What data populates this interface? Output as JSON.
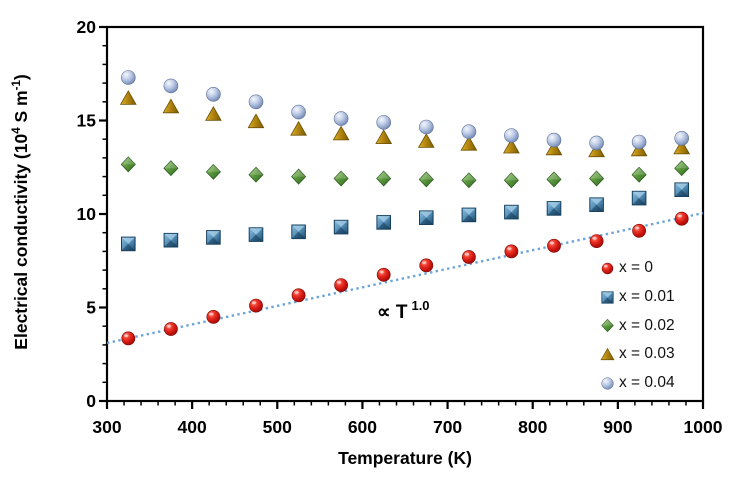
{
  "figure": {
    "y_axis_title_pre": "Electrical conductivity (10",
    "y_axis_title_sup1": "4",
    "y_axis_title_mid": " S m",
    "y_axis_title_sup2": "-1",
    "y_axis_title_post": ")",
    "x_axis_title": "Temperature (K)",
    "annotation_base": "∝ T",
    "annotation_exponent": "1.0",
    "background_color": "#ffffff",
    "frame_color": "#000000"
  },
  "chart_data": {
    "type": "scatter",
    "title": "",
    "xlabel": "Temperature (K)",
    "ylabel": "Electrical conductivity (10^4 S m^-1)",
    "xlim": [
      300,
      1000
    ],
    "ylim": [
      0,
      20
    ],
    "x_ticks_major": [
      300,
      400,
      500,
      600,
      700,
      800,
      900,
      1000
    ],
    "x_minor_step": 20,
    "y_ticks_major": [
      0,
      5,
      10,
      15,
      20
    ],
    "y_minor_step": 1,
    "grid": false,
    "legend_position": "inside lower right",
    "x": [
      325,
      375,
      425,
      475,
      525,
      575,
      625,
      675,
      725,
      775,
      825,
      875,
      925,
      975
    ],
    "series": [
      {
        "label": "x = 0",
        "marker": "sphere-red",
        "color": "#d01510",
        "values": [
          3.35,
          3.85,
          4.5,
          5.1,
          5.65,
          6.2,
          6.75,
          7.25,
          7.7,
          8.0,
          8.3,
          8.55,
          9.1,
          9.75
        ]
      },
      {
        "label": "x = 0.01",
        "marker": "square-blue",
        "color": "#4e87b0",
        "values": [
          8.4,
          8.6,
          8.75,
          8.9,
          9.05,
          9.3,
          9.55,
          9.8,
          9.95,
          10.1,
          10.3,
          10.5,
          10.85,
          11.3
        ]
      },
      {
        "label": "x = 0.02",
        "marker": "diamond-green",
        "color": "#57943a",
        "values": [
          12.65,
          12.45,
          12.25,
          12.1,
          12.0,
          11.9,
          11.9,
          11.85,
          11.8,
          11.8,
          11.85,
          11.9,
          12.1,
          12.45
        ]
      },
      {
        "label": "x = 0.03",
        "marker": "triangle-gold",
        "color": "#b3860f",
        "values": [
          16.2,
          15.75,
          15.35,
          14.95,
          14.55,
          14.3,
          14.1,
          13.9,
          13.75,
          13.6,
          13.5,
          13.4,
          13.45,
          13.55
        ]
      },
      {
        "label": "x = 0.04",
        "marker": "sphere-gray",
        "color": "#8ca1c9",
        "values": [
          17.3,
          16.85,
          16.4,
          16.0,
          15.45,
          15.1,
          14.9,
          14.65,
          14.4,
          14.2,
          13.95,
          13.8,
          13.85,
          14.05
        ]
      }
    ],
    "trend_line": {
      "x": [
        300,
        1000
      ],
      "y": [
        3.1,
        10.05
      ],
      "style": "dotted",
      "color": "#5b9bd5",
      "annotation": "∝ T^1.0"
    }
  }
}
